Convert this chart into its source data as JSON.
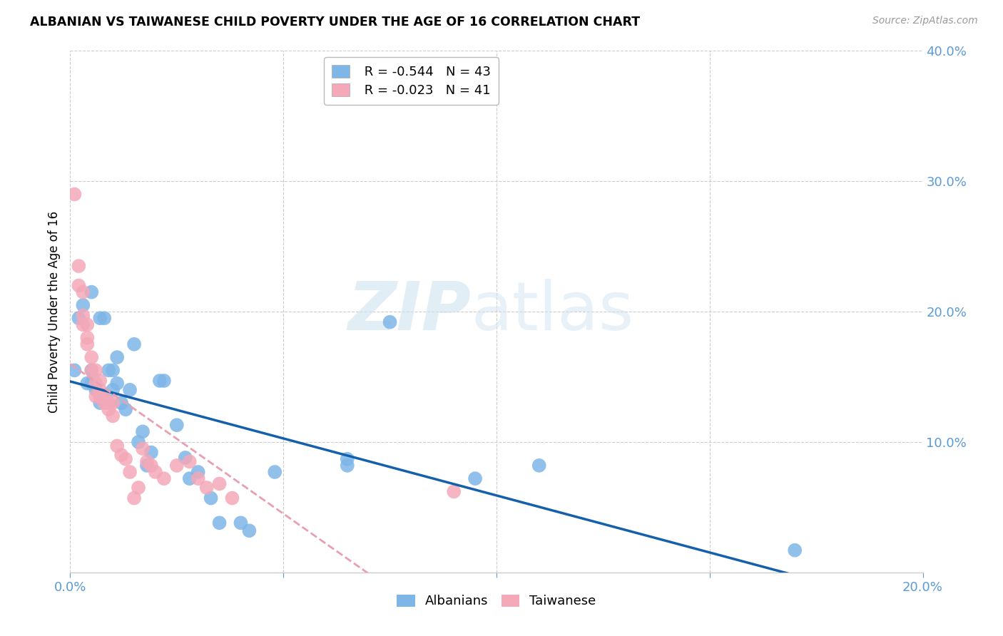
{
  "title": "ALBANIAN VS TAIWANESE CHILD POVERTY UNDER THE AGE OF 16 CORRELATION CHART",
  "source": "Source: ZipAtlas.com",
  "ylabel": "Child Poverty Under the Age of 16",
  "xlim": [
    0.0,
    0.2
  ],
  "ylim": [
    0.0,
    0.4
  ],
  "xticks": [
    0.0,
    0.05,
    0.1,
    0.15,
    0.2
  ],
  "yticks": [
    0.0,
    0.1,
    0.2,
    0.3,
    0.4
  ],
  "albanian_color": "#7EB6E8",
  "taiwanese_color": "#F4A8B8",
  "albanian_line_color": "#1460AA",
  "taiwanese_line_color": "#E8A0B0",
  "tick_color": "#5B9BD5",
  "grid_color": "#CCCCCC",
  "legend_albanian_R": "R = -0.544",
  "legend_albanian_N": "N = 43",
  "legend_taiwanese_R": "R = -0.023",
  "legend_taiwanese_N": "N = 41",
  "albanian_x": [
    0.001,
    0.002,
    0.003,
    0.004,
    0.005,
    0.005,
    0.005,
    0.006,
    0.007,
    0.007,
    0.008,
    0.008,
    0.009,
    0.009,
    0.01,
    0.01,
    0.011,
    0.011,
    0.012,
    0.013,
    0.014,
    0.015,
    0.016,
    0.017,
    0.018,
    0.019,
    0.021,
    0.022,
    0.025,
    0.027,
    0.028,
    0.03,
    0.033,
    0.035,
    0.04,
    0.042,
    0.048,
    0.065,
    0.065,
    0.075,
    0.095,
    0.11,
    0.17
  ],
  "albanian_y": [
    0.155,
    0.195,
    0.205,
    0.145,
    0.145,
    0.155,
    0.215,
    0.14,
    0.13,
    0.195,
    0.135,
    0.195,
    0.13,
    0.155,
    0.155,
    0.14,
    0.165,
    0.145,
    0.13,
    0.125,
    0.14,
    0.175,
    0.1,
    0.108,
    0.082,
    0.092,
    0.147,
    0.147,
    0.113,
    0.088,
    0.072,
    0.077,
    0.057,
    0.038,
    0.038,
    0.032,
    0.077,
    0.087,
    0.082,
    0.192,
    0.072,
    0.082,
    0.017
  ],
  "taiwanese_x": [
    0.001,
    0.002,
    0.002,
    0.003,
    0.003,
    0.003,
    0.004,
    0.004,
    0.004,
    0.005,
    0.005,
    0.006,
    0.006,
    0.006,
    0.007,
    0.007,
    0.007,
    0.008,
    0.008,
    0.009,
    0.009,
    0.01,
    0.01,
    0.011,
    0.012,
    0.013,
    0.014,
    0.015,
    0.016,
    0.017,
    0.018,
    0.019,
    0.02,
    0.022,
    0.025,
    0.028,
    0.03,
    0.032,
    0.035,
    0.038,
    0.09
  ],
  "taiwanese_y": [
    0.29,
    0.235,
    0.22,
    0.215,
    0.19,
    0.197,
    0.175,
    0.18,
    0.19,
    0.155,
    0.165,
    0.145,
    0.155,
    0.135,
    0.135,
    0.14,
    0.147,
    0.135,
    0.13,
    0.125,
    0.13,
    0.12,
    0.13,
    0.097,
    0.09,
    0.087,
    0.077,
    0.057,
    0.065,
    0.095,
    0.085,
    0.082,
    0.077,
    0.072,
    0.082,
    0.085,
    0.072,
    0.065,
    0.068,
    0.057,
    0.062
  ]
}
